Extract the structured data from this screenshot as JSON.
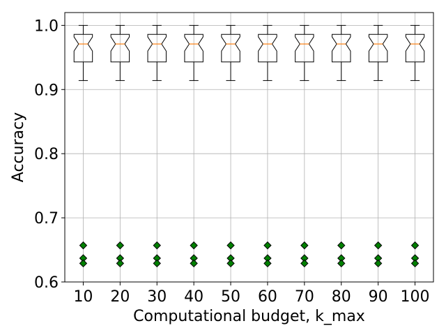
{
  "chart_data": {
    "type": "boxplot",
    "xlabel": "Computational budget, k_max",
    "ylabel": "Accuracy",
    "ylim": [
      0.6,
      1.02
    ],
    "yticks": [
      0.6,
      0.7,
      0.8,
      0.9,
      1.0
    ],
    "ytick_labels": [
      "0.6",
      "0.7",
      "0.8",
      "0.9",
      "1.0"
    ],
    "categories": [
      "10",
      "20",
      "30",
      "40",
      "50",
      "60",
      "70",
      "80",
      "90",
      "100"
    ],
    "grid": true,
    "notched": true,
    "boxes": [
      {
        "x": "10",
        "whisker_low": 0.914,
        "q1": 0.943,
        "median": 0.971,
        "q3": 0.986,
        "whisker_high": 1.0,
        "notch_low": 0.96,
        "notch_high": 0.982,
        "outliers": [
          0.657,
          0.637,
          0.629
        ]
      },
      {
        "x": "20",
        "whisker_low": 0.914,
        "q1": 0.943,
        "median": 0.971,
        "q3": 0.986,
        "whisker_high": 1.0,
        "notch_low": 0.96,
        "notch_high": 0.982,
        "outliers": [
          0.657,
          0.637,
          0.629
        ]
      },
      {
        "x": "30",
        "whisker_low": 0.914,
        "q1": 0.943,
        "median": 0.971,
        "q3": 0.986,
        "whisker_high": 1.0,
        "notch_low": 0.96,
        "notch_high": 0.982,
        "outliers": [
          0.657,
          0.637,
          0.629
        ]
      },
      {
        "x": "40",
        "whisker_low": 0.914,
        "q1": 0.943,
        "median": 0.971,
        "q3": 0.986,
        "whisker_high": 1.0,
        "notch_low": 0.96,
        "notch_high": 0.982,
        "outliers": [
          0.657,
          0.637,
          0.629
        ]
      },
      {
        "x": "50",
        "whisker_low": 0.914,
        "q1": 0.943,
        "median": 0.971,
        "q3": 0.986,
        "whisker_high": 1.0,
        "notch_low": 0.96,
        "notch_high": 0.982,
        "outliers": [
          0.657,
          0.637,
          0.629
        ]
      },
      {
        "x": "60",
        "whisker_low": 0.914,
        "q1": 0.943,
        "median": 0.971,
        "q3": 0.986,
        "whisker_high": 1.0,
        "notch_low": 0.96,
        "notch_high": 0.982,
        "outliers": [
          0.657,
          0.637,
          0.629
        ]
      },
      {
        "x": "70",
        "whisker_low": 0.914,
        "q1": 0.943,
        "median": 0.971,
        "q3": 0.986,
        "whisker_high": 1.0,
        "notch_low": 0.96,
        "notch_high": 0.982,
        "outliers": [
          0.657,
          0.637,
          0.629
        ]
      },
      {
        "x": "80",
        "whisker_low": 0.914,
        "q1": 0.943,
        "median": 0.971,
        "q3": 0.986,
        "whisker_high": 1.0,
        "notch_low": 0.96,
        "notch_high": 0.982,
        "outliers": [
          0.657,
          0.637,
          0.629
        ]
      },
      {
        "x": "90",
        "whisker_low": 0.914,
        "q1": 0.943,
        "median": 0.971,
        "q3": 0.986,
        "whisker_high": 1.0,
        "notch_low": 0.96,
        "notch_high": 0.982,
        "outliers": [
          0.657,
          0.637,
          0.629
        ]
      },
      {
        "x": "100",
        "whisker_low": 0.914,
        "q1": 0.943,
        "median": 0.971,
        "q3": 0.986,
        "whisker_high": 1.0,
        "notch_low": 0.96,
        "notch_high": 0.982,
        "outliers": [
          0.657,
          0.637,
          0.629
        ]
      }
    ],
    "colors": {
      "box": "#000000",
      "median": "#ff7f0e",
      "outlier_fill": "#008000",
      "outlier_edge": "#000000",
      "grid": "#b0b0b0"
    }
  }
}
